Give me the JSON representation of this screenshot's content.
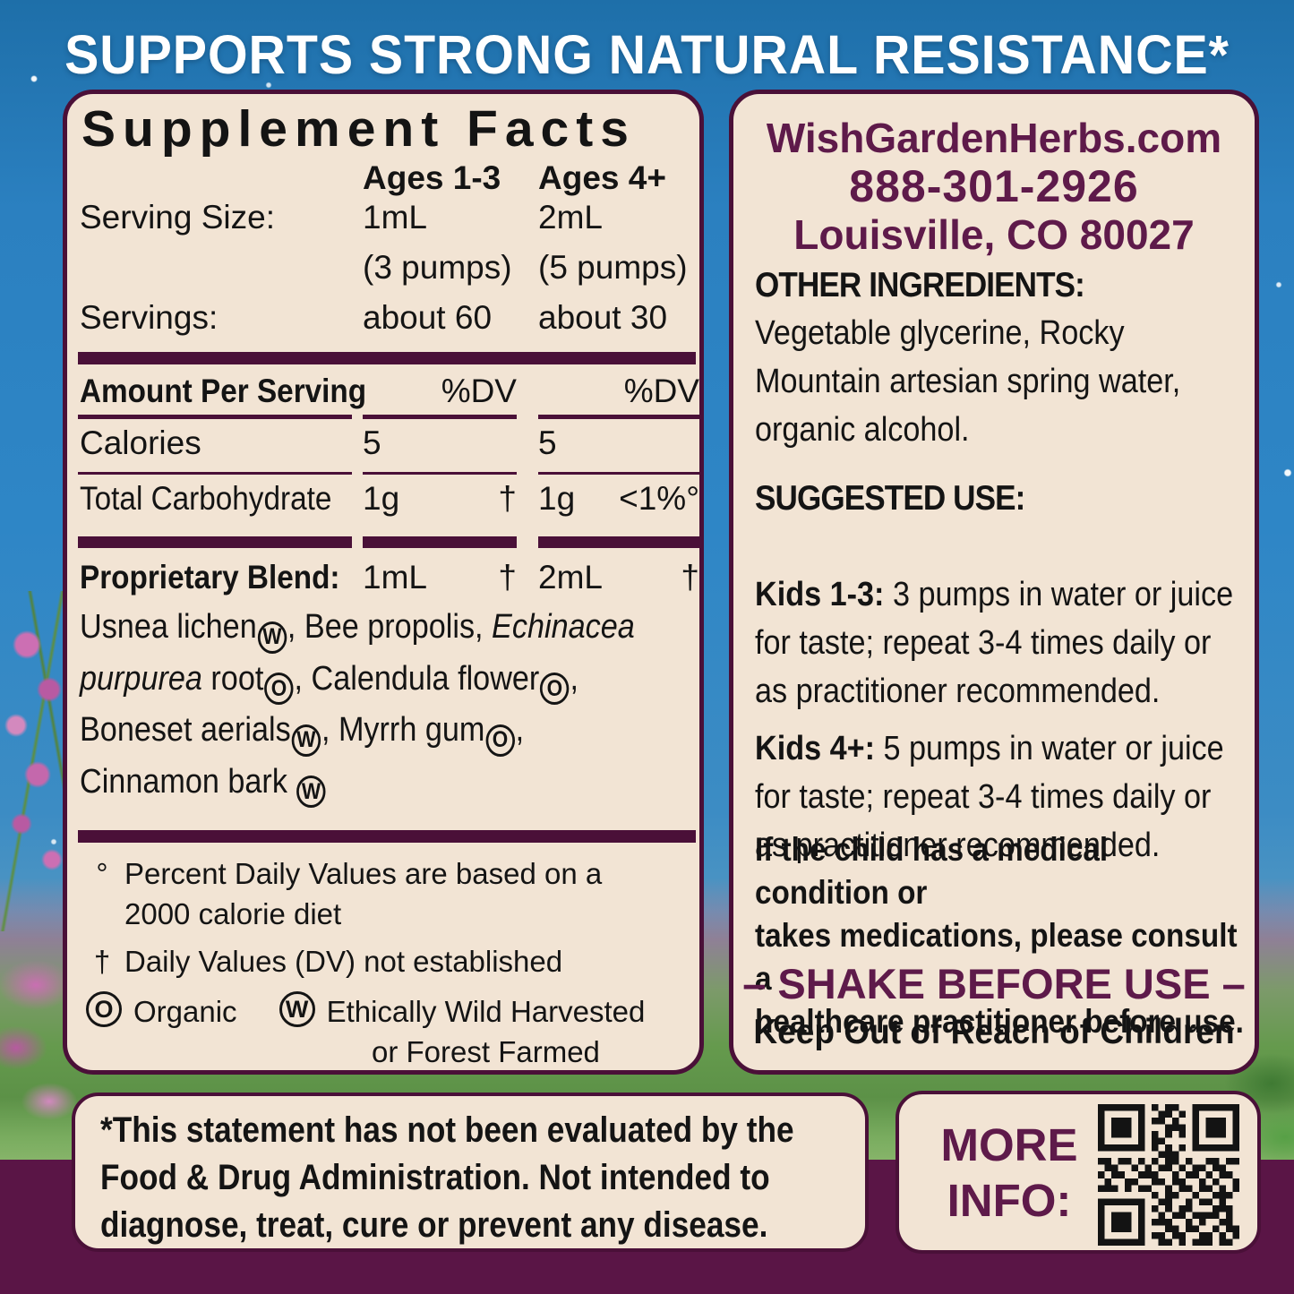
{
  "colors": {
    "cream": "#F2E4D4",
    "border_purple": "#4A1038",
    "maroon_text": "#5E1A4A",
    "sky_blue": "#2B80C0",
    "bottom_band_purple": "#5A1546",
    "meadow_green": "#659A4D",
    "text_black": "#141414",
    "banner_white": "#FFFFFF"
  },
  "banner": {
    "text": "SUPPORTS STRONG NATURAL RESISTANCE*"
  },
  "supplement_facts": {
    "title": "Supplement Facts",
    "age_col_1": "Ages 1-3",
    "age_col_2": "Ages 4+",
    "serving_size_label": "Serving Size:",
    "serving_size_1": "1mL",
    "serving_size_2": "2mL",
    "pumps_1": "(3 pumps)",
    "pumps_2": "(5 pumps)",
    "servings_label": "Servings:",
    "servings_1": "about 60",
    "servings_2": "about 30",
    "amount_label": "Amount Per Serving",
    "dv_1": "%DV",
    "dv_2": "%DV",
    "calories_label": "Calories",
    "calories_1": "5",
    "calories_2": "5",
    "carb_label": "Total Carbohydrate",
    "carb_1": "1g",
    "carb_dv_1": "†",
    "carb_2": "1g",
    "carb_dv_2": "<1%°",
    "blend_label": "Proprietary Blend:",
    "blend_1": "1mL",
    "blend_dv_1": "†",
    "blend_2": "2mL",
    "blend_dv_2": "†",
    "ingredients": [
      {
        "t": "Usnea lichen",
        "s": "W"
      },
      {
        "t": ", Bee propolis, "
      },
      {
        "t": "Echinacea",
        "i": 1
      },
      {
        "br": 1
      },
      {
        "t": "purpurea",
        "i": 1
      },
      {
        "t": " root",
        "s": "O"
      },
      {
        "t": ", Calendula flower",
        "s": "O"
      },
      {
        "t": ","
      },
      {
        "br": 1
      },
      {
        "t": "Boneset aerials",
        "s": "W"
      },
      {
        "t": ", Myrrh gum",
        "s": "O"
      },
      {
        "t": ","
      },
      {
        "br": 1
      },
      {
        "t": "Cinnamon bark ",
        "s": "W"
      }
    ],
    "footnote_dv": {
      "symbol": "°",
      "text": "Percent Daily Values are based on a\n2000 calorie diet"
    },
    "footnote_dagger": {
      "symbol": "†",
      "text": "Daily Values (DV) not established"
    },
    "footnote_organic": {
      "symbol": "O",
      "text": "Organic"
    },
    "footnote_wild": {
      "symbol": "W",
      "text": "Ethically Wild Harvested\nor Forest Farmed"
    }
  },
  "info_panel": {
    "website": "WishGardenHerbs.com",
    "phone": "888-301-2926",
    "address": "Louisville, CO 80027",
    "other_ingredients_label": "OTHER INGREDIENTS:",
    "other_ingredients_text": "Vegetable glycerine, Rocky\nMountain artesian spring water,\norganic alcohol.",
    "suggested_use_label": "SUGGESTED USE:",
    "kids_1_3_label": "Kids 1-3:",
    "kids_1_3_text": " 3 pumps in water or juice\nfor taste; repeat 3-4 times daily or\nas practitioner recommended.",
    "kids_4_label": "Kids 4+:",
    "kids_4_text": " 5 pumps in water or juice\nfor taste; repeat 3-4 times daily or\nas practitioner recommended.",
    "warning_text": "If the child has a medical condition or\ntakes medications, please consult a\nhealthcare practitioner before use.",
    "shake_text": "– SHAKE BEFORE USE –",
    "keep_out_text": "Keep Out of Reach of Children"
  },
  "disclaimer": {
    "text": "*This statement has not been evaluated by the\nFood & Drug Administration. Not intended to\ndiagnose, treat, cure or prevent any disease."
  },
  "more_info": {
    "label": "MORE\nINFO:",
    "qr_matrix": [
      "111111101011001111111",
      "100000100110101000001",
      "101110101101001011101",
      "101110100011101011101",
      "101110101010101011101",
      "100000101100001000001",
      "111111101010101111111",
      "000000000111000000000",
      "110110101011010011011",
      "011001010110101101100",
      "101100111001011010110",
      "010011001101100101001",
      "111010110010110110101",
      "000000001011001001110",
      "111111100110010110100",
      "100000101010110001110",
      "101110100101101111010",
      "101110101110010100110",
      "101110100011011001011",
      "100000101101100110101",
      "111111100110101110110"
    ]
  }
}
